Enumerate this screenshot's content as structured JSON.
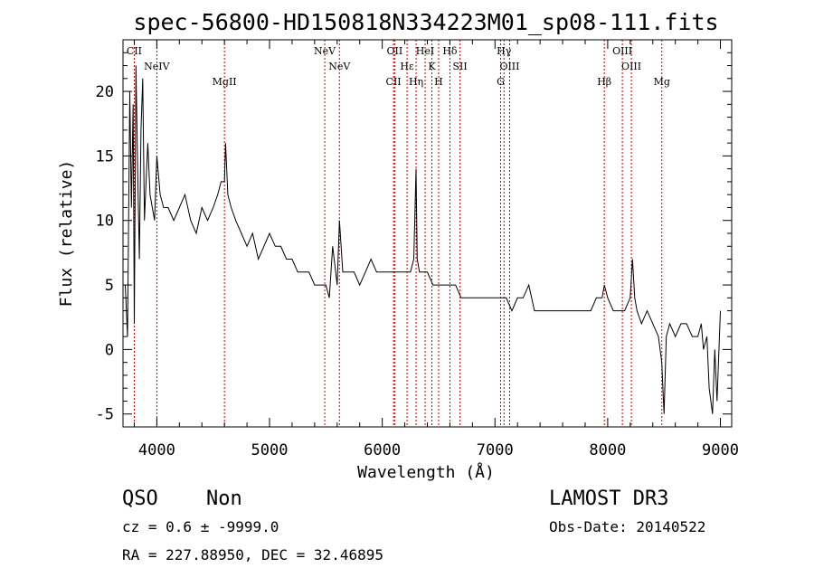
{
  "chart_data": {
    "type": "line",
    "title": "spec-56800-HD150818N334223M01_sp08-111.fits",
    "xlabel": "Wavelength (Å)",
    "ylabel": "Flux (relative)",
    "xlim": [
      3700,
      9100
    ],
    "ylim": [
      -6,
      24
    ],
    "xticks": [
      "4000",
      "5000",
      "6000",
      "7000",
      "8000",
      "9000"
    ],
    "yticks": [
      "-5",
      "0",
      "5",
      "10",
      "15",
      "20"
    ],
    "x_tick_values": [
      4000,
      5000,
      6000,
      7000,
      8000,
      9000
    ],
    "y_tick_values": [
      -5,
      0,
      5,
      10,
      15,
      20
    ],
    "grid": false,
    "series": [
      {
        "x": [
          3720,
          3740,
          3760,
          3775,
          3790,
          3800,
          3815,
          3830,
          3845,
          3860,
          3875,
          3890,
          3905,
          3920,
          3940,
          3960,
          3980,
          4000,
          4030,
          4060,
          4100,
          4150,
          4200,
          4250,
          4300,
          4350,
          4400,
          4450,
          4500,
          4540,
          4570,
          4600,
          4610,
          4630,
          4660,
          4700,
          4750,
          4800,
          4850,
          4900,
          4950,
          5000,
          5050,
          5100,
          5150,
          5200,
          5250,
          5300,
          5350,
          5400,
          5450,
          5500,
          5530,
          5560,
          5600,
          5620,
          5650,
          5700,
          5750,
          5800,
          5850,
          5900,
          5950,
          6000,
          6050,
          6100,
          6150,
          6200,
          6250,
          6280,
          6300,
          6310,
          6330,
          6350,
          6400,
          6450,
          6500,
          6550,
          6600,
          6650,
          6700,
          6750,
          6800,
          6850,
          6900,
          6950,
          7000,
          7050,
          7100,
          7150,
          7200,
          7250,
          7300,
          7350,
          7400,
          7450,
          7500,
          7550,
          7600,
          7650,
          7700,
          7750,
          7800,
          7850,
          7900,
          7950,
          7970,
          8000,
          8050,
          8100,
          8150,
          8200,
          8220,
          8240,
          8260,
          8300,
          8350,
          8400,
          8450,
          8480,
          8500,
          8520,
          8550,
          8600,
          8650,
          8700,
          8750,
          8800,
          8830,
          8850,
          8880,
          8900,
          8930,
          8950,
          8970,
          9000
        ],
        "y": [
          5,
          1,
          20,
          11,
          19,
          2,
          22,
          14,
          7,
          17,
          21,
          10,
          13,
          16,
          12,
          11,
          10,
          15,
          12,
          11,
          11,
          10,
          11,
          12,
          10,
          9,
          11,
          10,
          11,
          12,
          13,
          13,
          16,
          12,
          11,
          10,
          9,
          8,
          9,
          7,
          8,
          9,
          8,
          8,
          7,
          7,
          6,
          6,
          6,
          5,
          5,
          5,
          4,
          8,
          5,
          10,
          6,
          6,
          6,
          5,
          6,
          7,
          6,
          6,
          6,
          6,
          6,
          6,
          6,
          7,
          14,
          7,
          6,
          6,
          6,
          5,
          5,
          5,
          5,
          5,
          4,
          4,
          4,
          4,
          4,
          4,
          4,
          4,
          4,
          3,
          4,
          4,
          5,
          3,
          3,
          3,
          3,
          3,
          3,
          3,
          3,
          3,
          3,
          3,
          4,
          4,
          5,
          4,
          3,
          3,
          3,
          4,
          7,
          4,
          3,
          2,
          3,
          2,
          1,
          -1,
          -5,
          1,
          2,
          1,
          2,
          2,
          1,
          1,
          2,
          0,
          1,
          -3,
          -5,
          0,
          -4,
          3
        ]
      }
    ],
    "spectral_lines": [
      {
        "label": "CII",
        "x": 3800
      },
      {
        "label": "NeIV",
        "x": 4000
      },
      {
        "label": "MgII",
        "x": 4600
      },
      {
        "label": "NeV",
        "x": 5490
      },
      {
        "label": "NeV",
        "x": 5620
      },
      {
        "label": "CII",
        "x": 6100
      },
      {
        "label": "OII",
        "x": 6110
      },
      {
        "label": "Hε",
        "x": 6220
      },
      {
        "label": "Hη",
        "x": 6300
      },
      {
        "label": "HeI",
        "x": 6380
      },
      {
        "label": "K",
        "x": 6440
      },
      {
        "label": "H",
        "x": 6500
      },
      {
        "label": "Hδ",
        "x": 6600
      },
      {
        "label": "SII",
        "x": 6690
      },
      {
        "label": "G",
        "x": 7050
      },
      {
        "label": "Hγ",
        "x": 7080
      },
      {
        "label": "OIII",
        "x": 7130
      },
      {
        "label": "Hβ",
        "x": 7970
      },
      {
        "label": "OIII",
        "x": 8130
      },
      {
        "label": "OIII",
        "x": 8210
      },
      {
        "label": "Mg",
        "x": 8480
      }
    ]
  },
  "info": {
    "class": "QSO",
    "subclass": "Non",
    "survey": "LAMOST DR3",
    "cz": "cz = 0.6 ± -9999.0",
    "obs_date": "Obs-Date: 20140522",
    "coords": "RA = 227.88950, DEC =  32.46895"
  },
  "colors": {
    "spectrum": "#000000",
    "line_marker": "#cc0000",
    "axes": "#000000",
    "background": "#ffffff"
  }
}
